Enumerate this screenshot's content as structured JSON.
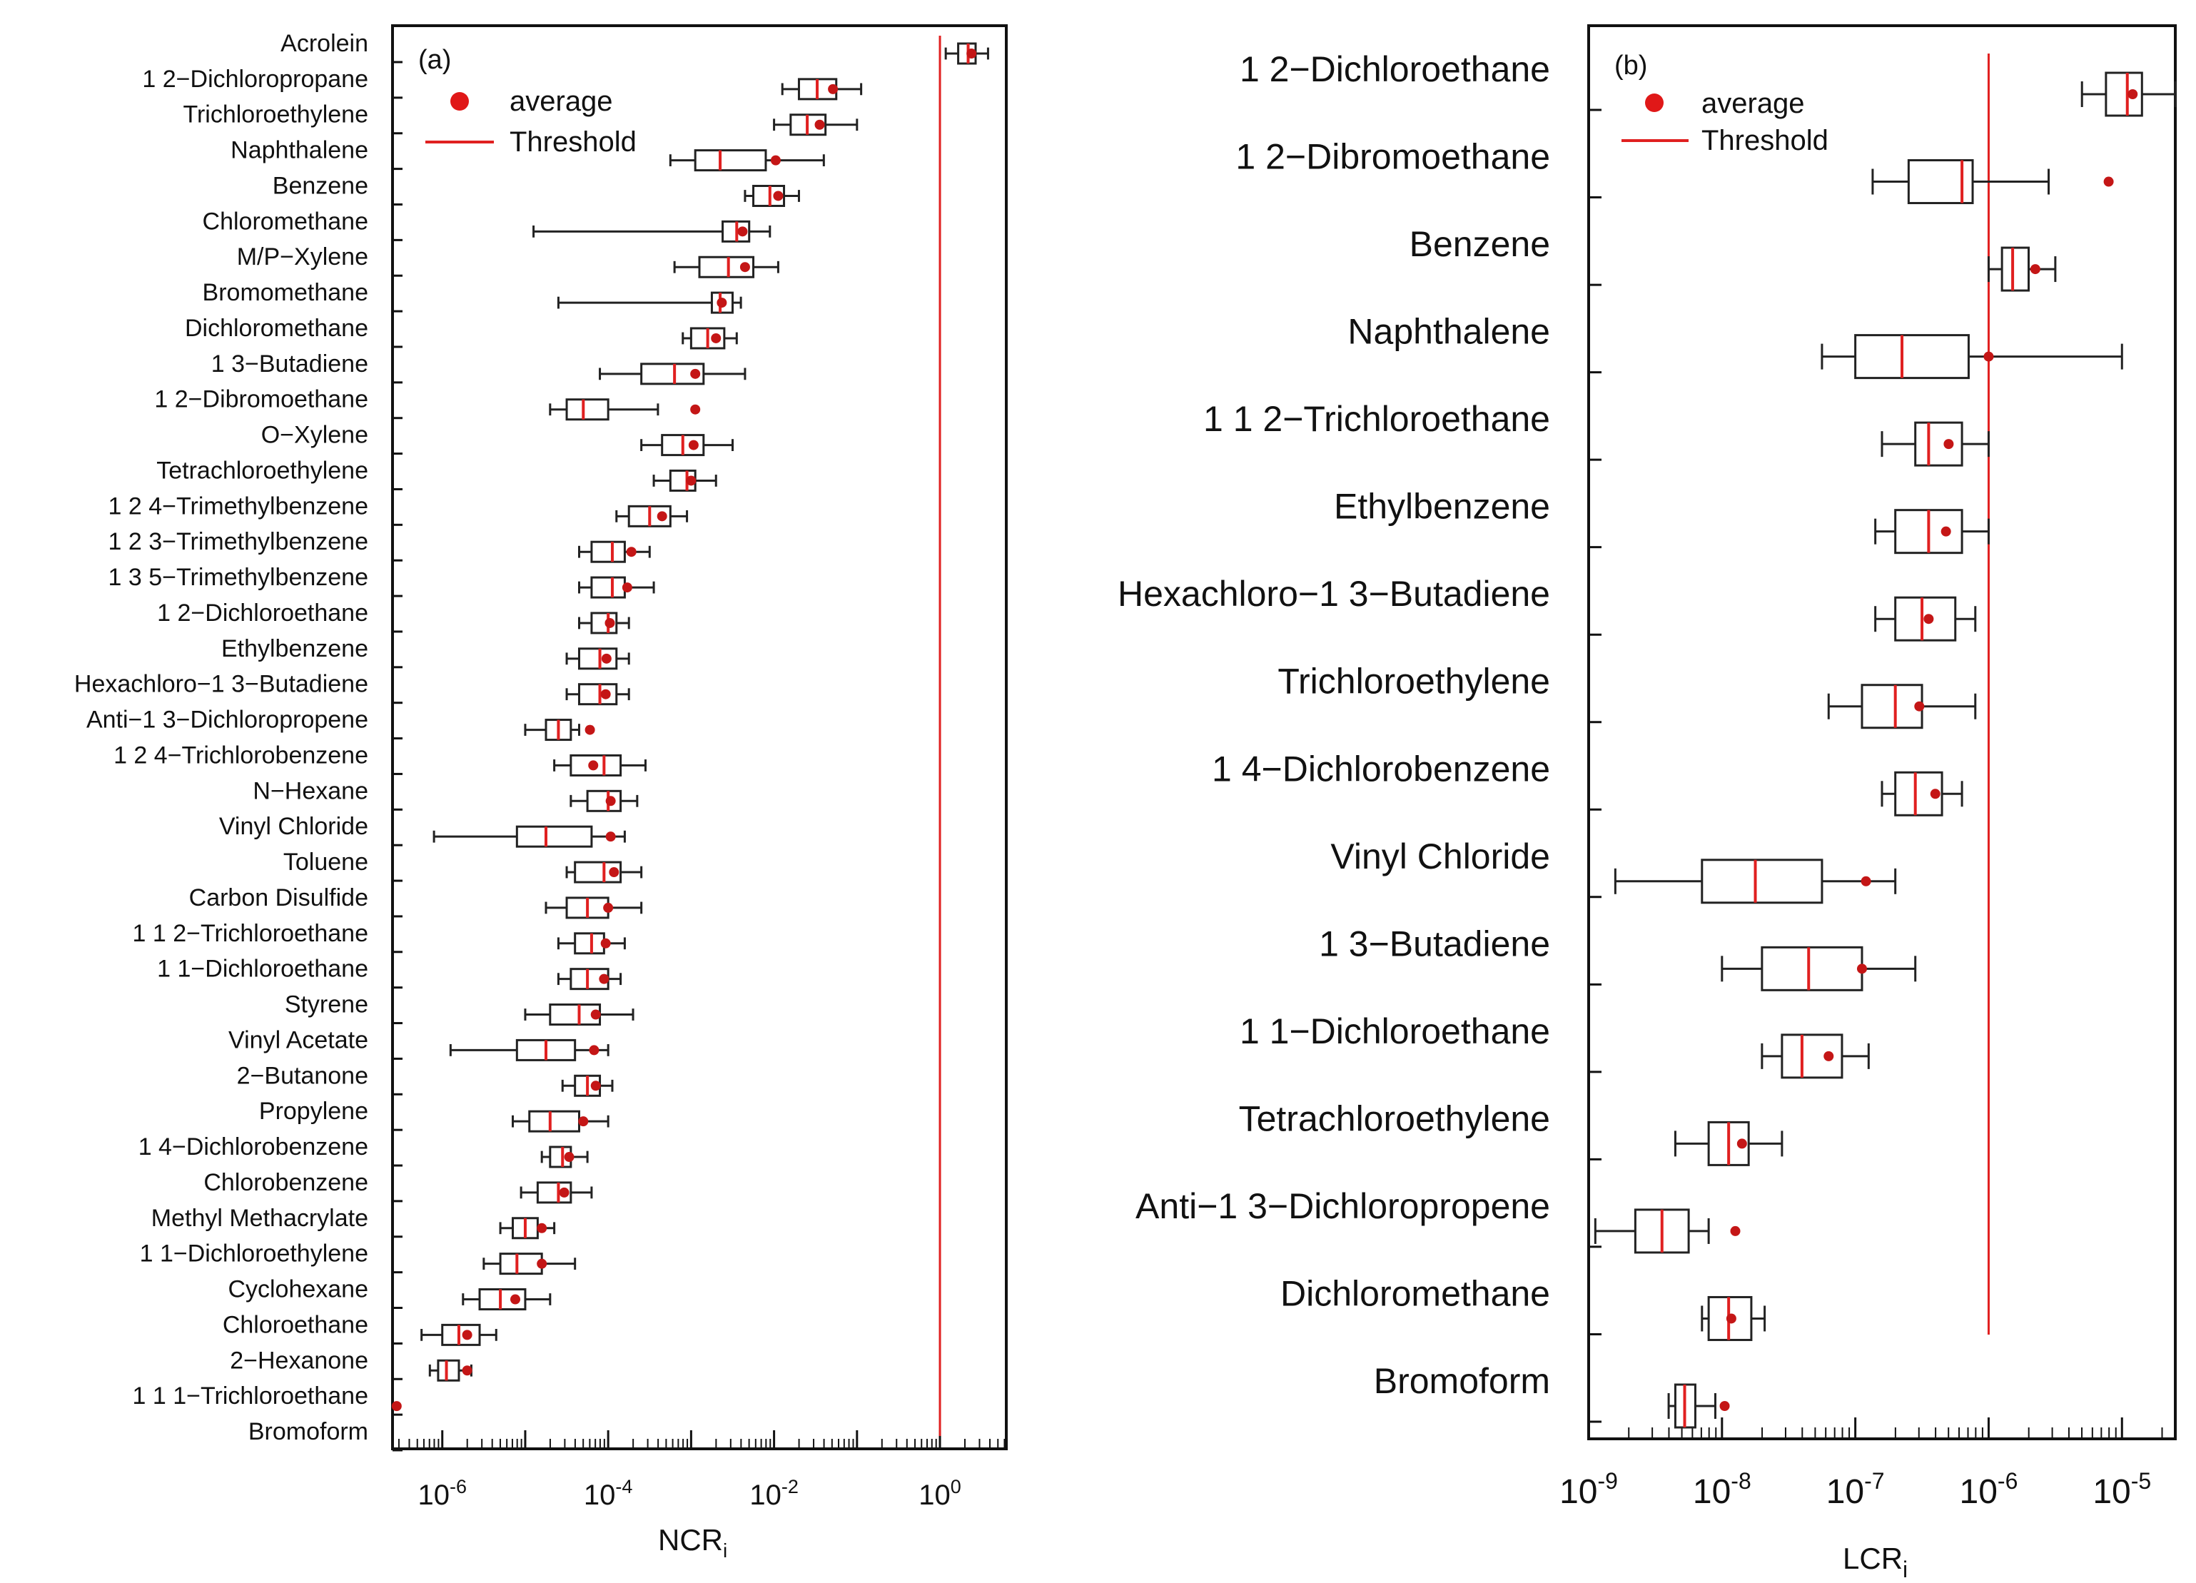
{
  "chart_data": [
    {
      "type": "boxplot",
      "panel_label": "(a)",
      "orientation": "horizontal",
      "x_scale": "log",
      "xlabel": "NCR",
      "xlabel_sub": "i",
      "xlim_exp": [
        -6.6,
        0.8
      ],
      "x_ticks": [
        {
          "base": "10",
          "exp": "-6",
          "e": -6
        },
        {
          "base": "10",
          "exp": "-4",
          "e": -4
        },
        {
          "base": "10",
          "exp": "-2",
          "e": -2
        },
        {
          "base": "10",
          "exp": "0",
          "e": 0
        }
      ],
      "threshold": 1,
      "legend": {
        "average": "average",
        "threshold": "Threshold"
      },
      "colors": {
        "median": "#e02020",
        "mean": "#c41616",
        "threshold": "#e02020",
        "box": "#222222"
      },
      "categories": [
        {
          "name": "Acrolein",
          "min_e": 0.07,
          "q1_e": 0.22,
          "med_e": 0.34,
          "q3_e": 0.43,
          "max_e": 0.58,
          "mean_e": 0.38
        },
        {
          "name": "1 2−Dichloropropane",
          "min_e": -1.9,
          "q1_e": -1.7,
          "med_e": -1.48,
          "q3_e": -1.25,
          "max_e": -0.95,
          "mean_e": -1.29
        },
        {
          "name": "Trichloroethylene",
          "min_e": -2.0,
          "q1_e": -1.8,
          "med_e": -1.6,
          "q3_e": -1.38,
          "max_e": -1.0,
          "mean_e": -1.45
        },
        {
          "name": "Naphthalene",
          "min_e": -3.25,
          "q1_e": -2.95,
          "med_e": -2.65,
          "q3_e": -2.1,
          "max_e": -1.4,
          "mean_e": -1.98
        },
        {
          "name": "Benzene",
          "min_e": -2.35,
          "q1_e": -2.25,
          "med_e": -2.05,
          "q3_e": -1.88,
          "max_e": -1.7,
          "mean_e": -1.95
        },
        {
          "name": "Chloromethane",
          "min_e": -4.9,
          "q1_e": -2.62,
          "med_e": -2.45,
          "q3_e": -2.3,
          "max_e": -2.05,
          "mean_e": -2.38
        },
        {
          "name": "M/P−Xylene",
          "min_e": -3.2,
          "q1_e": -2.9,
          "med_e": -2.55,
          "q3_e": -2.25,
          "max_e": -1.95,
          "mean_e": -2.35
        },
        {
          "name": "Bromomethane",
          "min_e": -4.6,
          "q1_e": -2.75,
          "med_e": -2.65,
          "q3_e": -2.5,
          "max_e": -2.4,
          "mean_e": -2.63
        },
        {
          "name": "Dichloromethane",
          "min_e": -3.1,
          "q1_e": -3.0,
          "med_e": -2.8,
          "q3_e": -2.6,
          "max_e": -2.45,
          "mean_e": -2.7
        },
        {
          "name": "1 3−Butadiene",
          "min_e": -4.1,
          "q1_e": -3.6,
          "med_e": -3.2,
          "q3_e": -2.85,
          "max_e": -2.35,
          "mean_e": -2.95
        },
        {
          "name": "1 2−Dibromoethane",
          "min_e": -4.7,
          "q1_e": -4.5,
          "med_e": -4.3,
          "q3_e": -4.0,
          "max_e": -3.4,
          "mean_e": -2.95
        },
        {
          "name": "O−Xylene",
          "min_e": -3.6,
          "q1_e": -3.35,
          "med_e": -3.1,
          "q3_e": -2.85,
          "max_e": -2.5,
          "mean_e": -2.97
        },
        {
          "name": "Tetrachloroethylene",
          "min_e": -3.45,
          "q1_e": -3.25,
          "med_e": -3.05,
          "q3_e": -2.95,
          "max_e": -2.7,
          "mean_e": -3.0
        },
        {
          "name": "1 2 4−Trimethylbenzene",
          "min_e": -3.9,
          "q1_e": -3.75,
          "med_e": -3.5,
          "q3_e": -3.25,
          "max_e": -3.05,
          "mean_e": -3.35
        },
        {
          "name": "1 2 3−Trimethylbenzene",
          "min_e": -4.35,
          "q1_e": -4.2,
          "med_e": -3.95,
          "q3_e": -3.8,
          "max_e": -3.5,
          "mean_e": -3.72
        },
        {
          "name": "1 3 5−Trimethylbenzene",
          "min_e": -4.35,
          "q1_e": -4.2,
          "med_e": -3.95,
          "q3_e": -3.8,
          "max_e": -3.45,
          "mean_e": -3.77
        },
        {
          "name": "1 2−Dichloroethane",
          "min_e": -4.35,
          "q1_e": -4.2,
          "med_e": -4.0,
          "q3_e": -3.9,
          "max_e": -3.75,
          "mean_e": -3.98
        },
        {
          "name": "Ethylbenzene",
          "min_e": -4.5,
          "q1_e": -4.35,
          "med_e": -4.1,
          "q3_e": -3.9,
          "max_e": -3.75,
          "mean_e": -4.02
        },
        {
          "name": "Hexachloro−1 3−Butadiene",
          "min_e": -4.5,
          "q1_e": -4.35,
          "med_e": -4.1,
          "q3_e": -3.9,
          "max_e": -3.75,
          "mean_e": -4.03
        },
        {
          "name": "Anti−1 3−Dichloropropene",
          "min_e": -5.0,
          "q1_e": -4.75,
          "med_e": -4.6,
          "q3_e": -4.45,
          "max_e": -4.35,
          "mean_e": -4.22
        },
        {
          "name": "1 2 4−Trichlorobenzene",
          "min_e": -4.65,
          "q1_e": -4.45,
          "med_e": -4.05,
          "q3_e": -3.85,
          "max_e": -3.55,
          "mean_e": -4.18
        },
        {
          "name": "N−Hexane",
          "min_e": -4.45,
          "q1_e": -4.25,
          "med_e": -4.0,
          "q3_e": -3.85,
          "max_e": -3.65,
          "mean_e": -3.97
        },
        {
          "name": "Vinyl Chloride",
          "min_e": -6.1,
          "q1_e": -5.1,
          "med_e": -4.75,
          "q3_e": -4.2,
          "max_e": -3.8,
          "mean_e": -3.97
        },
        {
          "name": "Toluene",
          "min_e": -4.5,
          "q1_e": -4.4,
          "med_e": -4.05,
          "q3_e": -3.85,
          "max_e": -3.6,
          "mean_e": -3.93
        },
        {
          "name": "Carbon Disulfide",
          "min_e": -4.75,
          "q1_e": -4.5,
          "med_e": -4.25,
          "q3_e": -4.0,
          "max_e": -3.6,
          "mean_e": -4.0
        },
        {
          "name": "1 1 2−Trichloroethane",
          "min_e": -4.6,
          "q1_e": -4.4,
          "med_e": -4.2,
          "q3_e": -4.05,
          "max_e": -3.8,
          "mean_e": -4.03
        },
        {
          "name": "1 1−Dichloroethane",
          "min_e": -4.6,
          "q1_e": -4.45,
          "med_e": -4.25,
          "q3_e": -4.0,
          "max_e": -3.85,
          "mean_e": -4.05
        },
        {
          "name": "Styrene",
          "min_e": -5.0,
          "q1_e": -4.7,
          "med_e": -4.35,
          "q3_e": -4.1,
          "max_e": -3.7,
          "mean_e": -4.15
        },
        {
          "name": "Vinyl Acetate",
          "min_e": -5.9,
          "q1_e": -5.1,
          "med_e": -4.75,
          "q3_e": -4.4,
          "max_e": -4.0,
          "mean_e": -4.17
        },
        {
          "name": "2−Butanone",
          "min_e": -4.55,
          "q1_e": -4.4,
          "med_e": -4.25,
          "q3_e": -4.1,
          "max_e": -3.95,
          "mean_e": -4.15
        },
        {
          "name": "Propylene",
          "min_e": -5.15,
          "q1_e": -4.95,
          "med_e": -4.7,
          "q3_e": -4.35,
          "max_e": -4.0,
          "mean_e": -4.3
        },
        {
          "name": "1 4−Dichlorobenzene",
          "min_e": -4.8,
          "q1_e": -4.7,
          "med_e": -4.55,
          "q3_e": -4.45,
          "max_e": -4.25,
          "mean_e": -4.47
        },
        {
          "name": "Chlorobenzene",
          "min_e": -5.05,
          "q1_e": -4.85,
          "med_e": -4.6,
          "q3_e": -4.45,
          "max_e": -4.2,
          "mean_e": -4.53
        },
        {
          "name": "Methyl Methacrylate",
          "min_e": -5.3,
          "q1_e": -5.15,
          "med_e": -5.0,
          "q3_e": -4.85,
          "max_e": -4.65,
          "mean_e": -4.8
        },
        {
          "name": "1 1−Dichloroethylene",
          "min_e": -5.5,
          "q1_e": -5.3,
          "med_e": -5.1,
          "q3_e": -4.8,
          "max_e": -4.4,
          "mean_e": -4.8
        },
        {
          "name": "Cyclohexane",
          "min_e": -5.75,
          "q1_e": -5.55,
          "med_e": -5.3,
          "q3_e": -5.0,
          "max_e": -4.7,
          "mean_e": -5.12
        },
        {
          "name": "Chloroethane",
          "min_e": -6.25,
          "q1_e": -6.0,
          "med_e": -5.8,
          "q3_e": -5.55,
          "max_e": -5.35,
          "mean_e": -5.7
        },
        {
          "name": "2−Hexanone",
          "min_e": -6.15,
          "q1_e": -6.05,
          "med_e": -5.95,
          "q3_e": -5.8,
          "max_e": -5.65,
          "mean_e": -5.7
        },
        {
          "name": "1 1 1−Trichloroethane",
          "min_e": null,
          "q1_e": null,
          "med_e": null,
          "q3_e": null,
          "max_e": null,
          "mean_e": -6.55
        },
        {
          "name": "Bromoform",
          "min_e": null,
          "q1_e": null,
          "med_e": null,
          "q3_e": null,
          "max_e": null,
          "mean_e": null
        }
      ]
    },
    {
      "type": "boxplot",
      "panel_label": "(b)",
      "orientation": "horizontal",
      "x_scale": "log",
      "xlabel": "LCR",
      "xlabel_sub": "i",
      "xlim_exp": [
        -9,
        -4.6
      ],
      "x_ticks": [
        {
          "base": "10",
          "exp": "-9",
          "e": -9
        },
        {
          "base": "10",
          "exp": "-8",
          "e": -8
        },
        {
          "base": "10",
          "exp": "-7",
          "e": -7
        },
        {
          "base": "10",
          "exp": "-6",
          "e": -6
        },
        {
          "base": "10",
          "exp": "-5",
          "e": -5
        }
      ],
      "threshold": 1e-06,
      "legend": {
        "average": "average",
        "threshold": "Threshold"
      },
      "colors": {
        "median": "#e02020",
        "mean": "#c41616",
        "threshold": "#e02020",
        "box": "#222222"
      },
      "categories": [
        {
          "name": "1 2−Dichloroethane",
          "min_e": -5.3,
          "q1_e": -5.12,
          "med_e": -4.96,
          "q3_e": -4.85,
          "max_e": -4.6,
          "mean_e": -4.92
        },
        {
          "name": "1 2−Dibromoethane",
          "min_e": -6.87,
          "q1_e": -6.6,
          "med_e": -6.2,
          "q3_e": -6.12,
          "max_e": -5.55,
          "mean_e": -5.1
        },
        {
          "name": "Benzene",
          "min_e": -6.0,
          "q1_e": -5.9,
          "med_e": -5.82,
          "q3_e": -5.7,
          "max_e": -5.5,
          "mean_e": -5.65
        },
        {
          "name": "Naphthalene",
          "min_e": -7.25,
          "q1_e": -7.0,
          "med_e": -6.65,
          "q3_e": -6.15,
          "max_e": -5.0,
          "mean_e": -6.0
        },
        {
          "name": "1 1 2−Trichloroethane",
          "min_e": -6.8,
          "q1_e": -6.55,
          "med_e": -6.45,
          "q3_e": -6.2,
          "max_e": -6.0,
          "mean_e": -6.3
        },
        {
          "name": "Ethylbenzene",
          "min_e": -6.85,
          "q1_e": -6.7,
          "med_e": -6.45,
          "q3_e": -6.2,
          "max_e": -6.0,
          "mean_e": -6.32
        },
        {
          "name": "Hexachloro−1 3−Butadiene",
          "min_e": -6.85,
          "q1_e": -6.7,
          "med_e": -6.5,
          "q3_e": -6.25,
          "max_e": -6.1,
          "mean_e": -6.45
        },
        {
          "name": "Trichloroethylene",
          "min_e": -7.2,
          "q1_e": -6.95,
          "med_e": -6.7,
          "q3_e": -6.5,
          "max_e": -6.1,
          "mean_e": -6.52
        },
        {
          "name": "1 4−Dichlorobenzene",
          "min_e": -6.8,
          "q1_e": -6.7,
          "med_e": -6.55,
          "q3_e": -6.35,
          "max_e": -6.2,
          "mean_e": -6.4
        },
        {
          "name": "Vinyl Chloride",
          "min_e": -8.8,
          "q1_e": -8.15,
          "med_e": -7.75,
          "q3_e": -7.25,
          "max_e": -6.7,
          "mean_e": -6.92
        },
        {
          "name": "1 3−Butadiene",
          "min_e": -8.0,
          "q1_e": -7.7,
          "med_e": -7.35,
          "q3_e": -6.95,
          "max_e": -6.55,
          "mean_e": -6.95
        },
        {
          "name": "1 1−Dichloroethane",
          "min_e": -7.7,
          "q1_e": -7.55,
          "med_e": -7.4,
          "q3_e": -7.1,
          "max_e": -6.9,
          "mean_e": -7.2
        },
        {
          "name": "Tetrachloroethylene",
          "min_e": -8.35,
          "q1_e": -8.1,
          "med_e": -7.95,
          "q3_e": -7.8,
          "max_e": -7.55,
          "mean_e": -7.85
        },
        {
          "name": "Anti−1 3−Dichloropropene",
          "min_e": -8.95,
          "q1_e": -8.65,
          "med_e": -8.45,
          "q3_e": -8.25,
          "max_e": -8.1,
          "mean_e": -7.9
        },
        {
          "name": "Dichloromethane",
          "min_e": -8.15,
          "q1_e": -8.1,
          "med_e": -7.95,
          "q3_e": -7.78,
          "max_e": -7.68,
          "mean_e": -7.93
        },
        {
          "name": "Bromoform",
          "min_e": -8.4,
          "q1_e": -8.35,
          "med_e": -8.28,
          "q3_e": -8.2,
          "max_e": -8.05,
          "mean_e": -7.98
        }
      ]
    }
  ]
}
